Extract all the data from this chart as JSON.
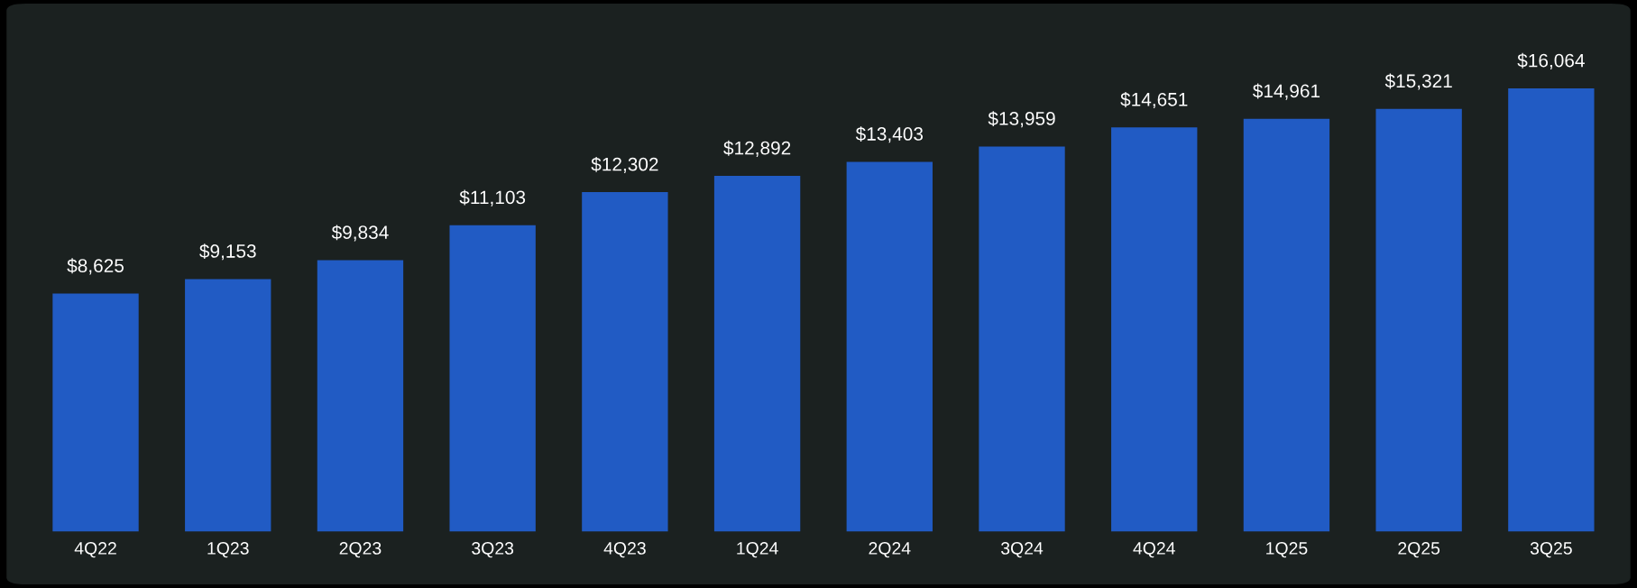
{
  "chart_data": {
    "type": "bar",
    "categories": [
      "4Q22",
      "1Q23",
      "2Q23",
      "3Q23",
      "4Q23",
      "1Q24",
      "2Q24",
      "3Q24",
      "4Q24",
      "1Q25",
      "2Q25",
      "3Q25"
    ],
    "values": [
      8625,
      9153,
      9834,
      11103,
      12302,
      12892,
      13403,
      13959,
      14651,
      14961,
      15321,
      16064
    ],
    "value_labels": [
      "$8,625",
      "$9,153",
      "$9,834",
      "$11,103",
      "$12,302",
      "$12,892",
      "$13,403",
      "$13,959",
      "$14,651",
      "$14,961",
      "$15,321",
      "$16,064"
    ],
    "color": "#215bc4",
    "tick_labels": "x",
    "grid": false,
    "legend": false
  }
}
